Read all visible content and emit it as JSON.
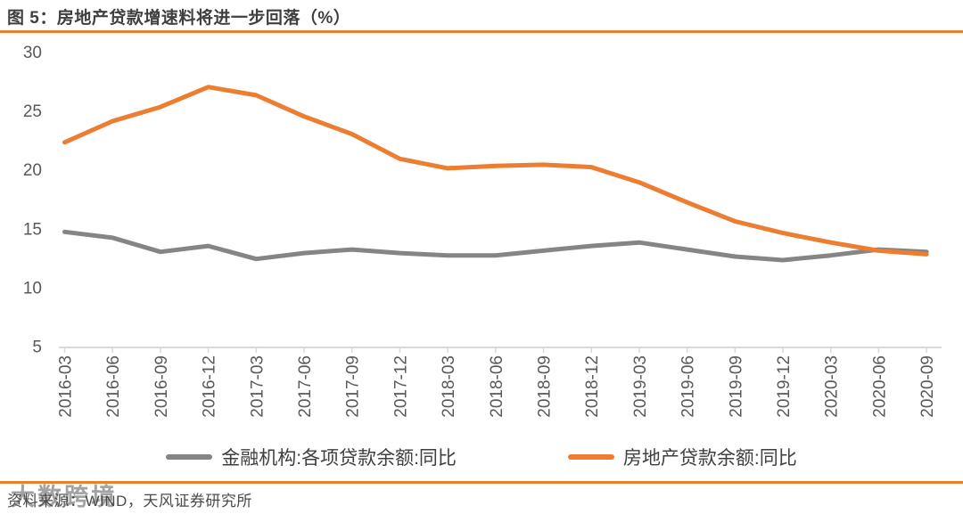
{
  "header": {
    "title": "图 5：房地产贷款增速料将进一步回落（%）"
  },
  "colors": {
    "accent_rule": "#e8812d",
    "axis_line": "#d9d9d9",
    "axis_text": "#595959",
    "series_gray": "#858585",
    "series_orange": "#ed7d31"
  },
  "chart_data": {
    "type": "line",
    "title": "房地产贷款增速料将进一步回落（%）",
    "xlabel": "",
    "ylabel": "",
    "ylim": [
      5,
      30
    ],
    "yticks": [
      30,
      25,
      20,
      15,
      10,
      5
    ],
    "grid": false,
    "legend_position": "bottom",
    "categories": [
      "2016-03",
      "2016-06",
      "2016-09",
      "2016-12",
      "2017-03",
      "2017-06",
      "2017-09",
      "2017-12",
      "2018-03",
      "2018-06",
      "2018-09",
      "2018-12",
      "2019-03",
      "2019-06",
      "2019-09",
      "2019-12",
      "2020-03",
      "2020-06",
      "2020-09"
    ],
    "series": [
      {
        "name": "金融机构:各项贷款余额:同比",
        "color": "#858585",
        "values": [
          14.7,
          14.2,
          13.0,
          13.5,
          12.4,
          12.9,
          13.2,
          12.9,
          12.7,
          12.7,
          13.1,
          13.5,
          13.8,
          13.2,
          12.6,
          12.3,
          12.7,
          13.2,
          13.0
        ]
      },
      {
        "name": "房地产贷款余额:同比",
        "color": "#ed7d31",
        "values": [
          22.3,
          24.1,
          25.3,
          27.0,
          26.3,
          24.5,
          23.0,
          20.9,
          20.1,
          20.3,
          20.4,
          20.2,
          18.9,
          17.2,
          15.6,
          14.6,
          13.8,
          13.1,
          12.8
        ]
      }
    ]
  },
  "footer": {
    "source_label": "资料来源：WIND，天风证券研究所"
  },
  "watermark": {
    "text": "大数跨境"
  }
}
